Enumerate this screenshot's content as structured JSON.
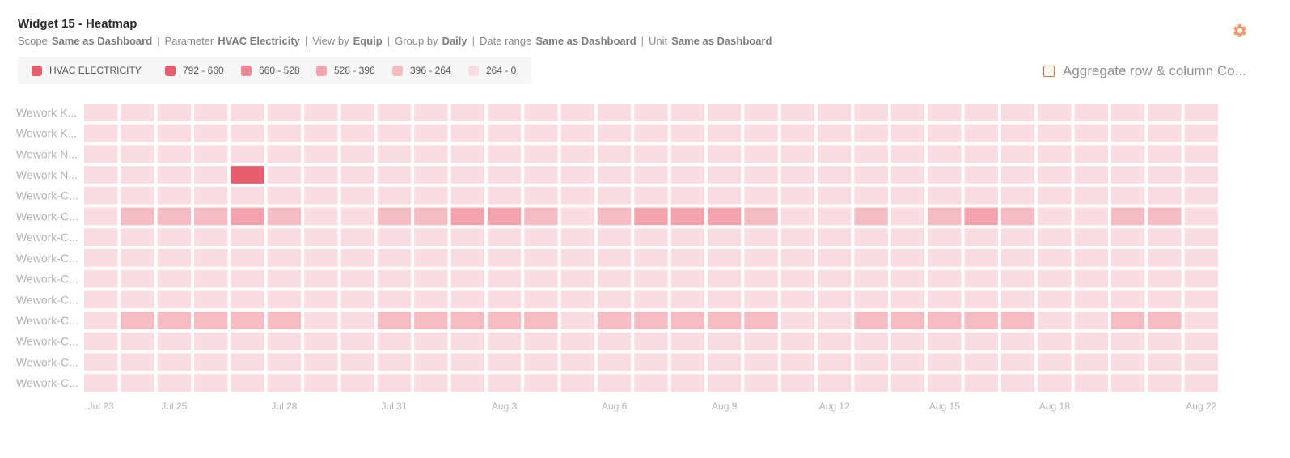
{
  "widget": {
    "title": "Widget 15 - Heatmap",
    "meta": [
      {
        "label": "Scope",
        "value": "Same as Dashboard"
      },
      {
        "label": "Parameter",
        "value": "HVAC Electricity"
      },
      {
        "label": "View by",
        "value": "Equip"
      },
      {
        "label": "Group by",
        "value": "Daily"
      },
      {
        "label": "Date range",
        "value": "Same as Dashboard"
      },
      {
        "label": "Unit",
        "value": "Same as Dashboard"
      }
    ],
    "separator": "|",
    "settings_icon": "gear-icon",
    "gear_color": "#f09a70",
    "aggregate_label": "Aggregate row & column Co..."
  },
  "chart_data": {
    "type": "heatmap",
    "title": "",
    "legend": [
      {
        "label": "HVAC ELECTRICITY",
        "color": "#e85d6e",
        "series": true
      },
      {
        "label": "792 - 660",
        "color": "#e85d6e"
      },
      {
        "label": "660 - 528",
        "color": "#ef8a96"
      },
      {
        "label": "528 - 396",
        "color": "#f3a3ad"
      },
      {
        "label": "396 - 264",
        "color": "#f6bcc4"
      },
      {
        "label": "264 - 0",
        "color": "#fadde2"
      }
    ],
    "rows": [
      "Wework K...",
      "Wework K...",
      "Wework N...",
      "Wework N...",
      "Wework-C...",
      "Wework-C...",
      "Wework-C...",
      "Wework-C...",
      "Wework-C...",
      "Wework-C...",
      "Wework-C...",
      "Wework-C...",
      "Wework-C...",
      "Wework-C..."
    ],
    "x_ticks": [
      "Jul 23",
      "Jul 25",
      "Jul 28",
      "Jul 31",
      "Aug 3",
      "Aug 6",
      "Aug 9",
      "Aug 12",
      "Aug 15",
      "Aug 18",
      "Aug 22"
    ],
    "days": 31,
    "bins": [
      {
        "range": [
          660,
          792
        ],
        "color": "#e85d6e"
      },
      {
        "range": [
          528,
          660
        ],
        "color": "#ef8a96"
      },
      {
        "range": [
          396,
          528
        ],
        "color": "#f3a3ad"
      },
      {
        "range": [
          264,
          396
        ],
        "color": "#f6bcc4"
      },
      {
        "range": [
          0,
          264
        ],
        "color": "#fadde2"
      }
    ],
    "values": [
      [
        50,
        50,
        50,
        50,
        50,
        50,
        50,
        50,
        50,
        50,
        50,
        50,
        50,
        50,
        50,
        50,
        50,
        50,
        50,
        50,
        50,
        50,
        50,
        50,
        50,
        50,
        50,
        50,
        50,
        50,
        50
      ],
      [
        50,
        50,
        50,
        50,
        50,
        50,
        50,
        50,
        50,
        50,
        50,
        50,
        50,
        50,
        50,
        50,
        50,
        50,
        50,
        50,
        50,
        50,
        50,
        50,
        50,
        50,
        50,
        50,
        50,
        50,
        50
      ],
      [
        50,
        50,
        50,
        50,
        50,
        50,
        50,
        50,
        50,
        50,
        50,
        50,
        50,
        50,
        50,
        50,
        50,
        50,
        50,
        50,
        50,
        50,
        50,
        50,
        50,
        50,
        50,
        50,
        50,
        50,
        50
      ],
      [
        50,
        50,
        50,
        50,
        720,
        50,
        50,
        50,
        50,
        50,
        50,
        50,
        50,
        50,
        50,
        50,
        50,
        50,
        50,
        50,
        50,
        50,
        50,
        50,
        50,
        50,
        50,
        50,
        50,
        50,
        50
      ],
      [
        50,
        50,
        50,
        50,
        50,
        50,
        50,
        50,
        50,
        50,
        50,
        50,
        50,
        50,
        50,
        50,
        50,
        50,
        50,
        50,
        50,
        50,
        50,
        50,
        50,
        50,
        50,
        50,
        50,
        50,
        50
      ],
      [
        50,
        330,
        330,
        330,
        460,
        330,
        50,
        50,
        330,
        330,
        460,
        460,
        330,
        50,
        330,
        460,
        460,
        460,
        330,
        50,
        50,
        330,
        50,
        330,
        460,
        330,
        50,
        50,
        330,
        330,
        50
      ],
      [
        50,
        50,
        50,
        50,
        50,
        50,
        50,
        50,
        50,
        50,
        50,
        50,
        50,
        50,
        50,
        50,
        50,
        50,
        50,
        50,
        50,
        50,
        50,
        50,
        50,
        50,
        50,
        50,
        50,
        50,
        50
      ],
      [
        50,
        50,
        50,
        50,
        50,
        50,
        50,
        50,
        50,
        50,
        50,
        50,
        50,
        50,
        50,
        50,
        50,
        50,
        50,
        50,
        50,
        50,
        50,
        50,
        50,
        50,
        50,
        50,
        50,
        50,
        50
      ],
      [
        50,
        50,
        50,
        50,
        50,
        50,
        50,
        50,
        50,
        50,
        50,
        50,
        50,
        50,
        50,
        50,
        50,
        50,
        50,
        50,
        50,
        50,
        50,
        50,
        50,
        50,
        50,
        50,
        50,
        50,
        50
      ],
      [
        50,
        50,
        50,
        50,
        50,
        50,
        50,
        50,
        50,
        50,
        50,
        50,
        50,
        50,
        50,
        50,
        50,
        50,
        50,
        50,
        50,
        50,
        50,
        50,
        50,
        50,
        50,
        50,
        50,
        50,
        50
      ],
      [
        50,
        330,
        330,
        330,
        330,
        330,
        50,
        50,
        330,
        330,
        330,
        330,
        330,
        50,
        330,
        330,
        330,
        330,
        330,
        50,
        50,
        330,
        330,
        330,
        330,
        330,
        50,
        50,
        330,
        330,
        50
      ],
      [
        50,
        50,
        50,
        50,
        50,
        50,
        50,
        50,
        50,
        50,
        50,
        50,
        50,
        50,
        50,
        50,
        50,
        50,
        50,
        50,
        50,
        50,
        50,
        50,
        50,
        50,
        50,
        50,
        50,
        50,
        50
      ],
      [
        50,
        50,
        50,
        50,
        50,
        50,
        50,
        50,
        50,
        50,
        50,
        50,
        50,
        50,
        50,
        50,
        50,
        50,
        50,
        50,
        50,
        50,
        50,
        50,
        50,
        50,
        50,
        50,
        50,
        50,
        50
      ],
      [
        50,
        50,
        50,
        50,
        50,
        50,
        50,
        50,
        50,
        50,
        50,
        50,
        50,
        50,
        50,
        50,
        50,
        50,
        50,
        50,
        50,
        50,
        50,
        50,
        50,
        50,
        50,
        50,
        50,
        50,
        50
      ]
    ],
    "grid": false,
    "legend_position": "top-left"
  }
}
